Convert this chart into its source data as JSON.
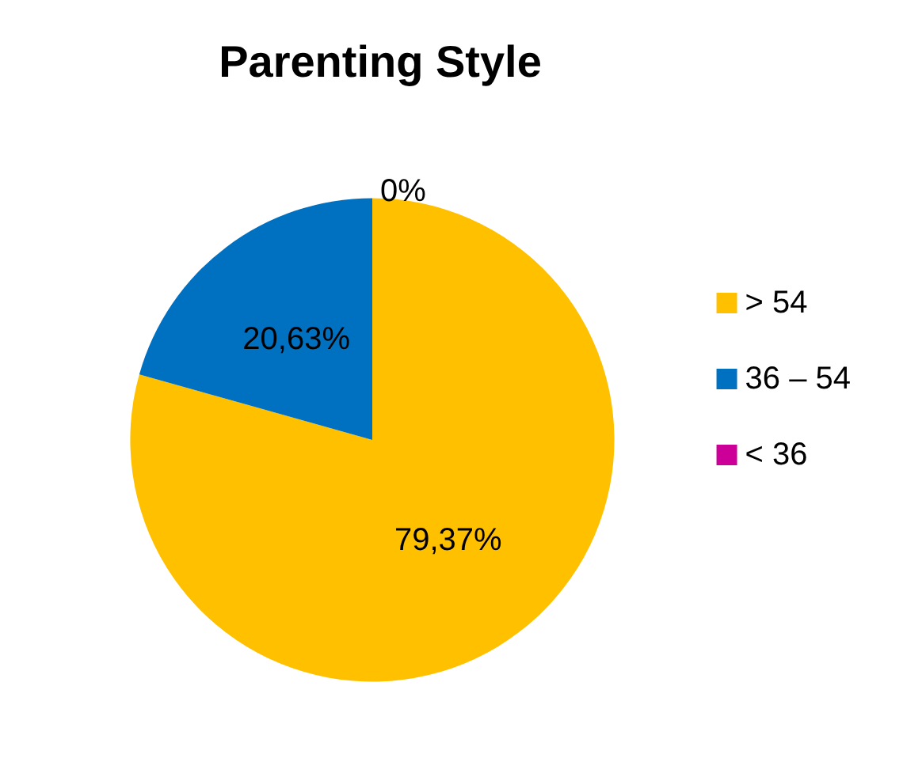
{
  "chart_data": {
    "type": "pie",
    "title": "Parenting Style",
    "categories": [
      "> 54",
      "36 – 54",
      "< 36"
    ],
    "values": [
      79.37,
      20.63,
      0
    ],
    "colors": [
      "#ffc000",
      "#0070c0",
      "#cc0099"
    ],
    "value_labels": [
      "79,37%",
      "20,63%",
      "0%"
    ],
    "legend": "right"
  }
}
